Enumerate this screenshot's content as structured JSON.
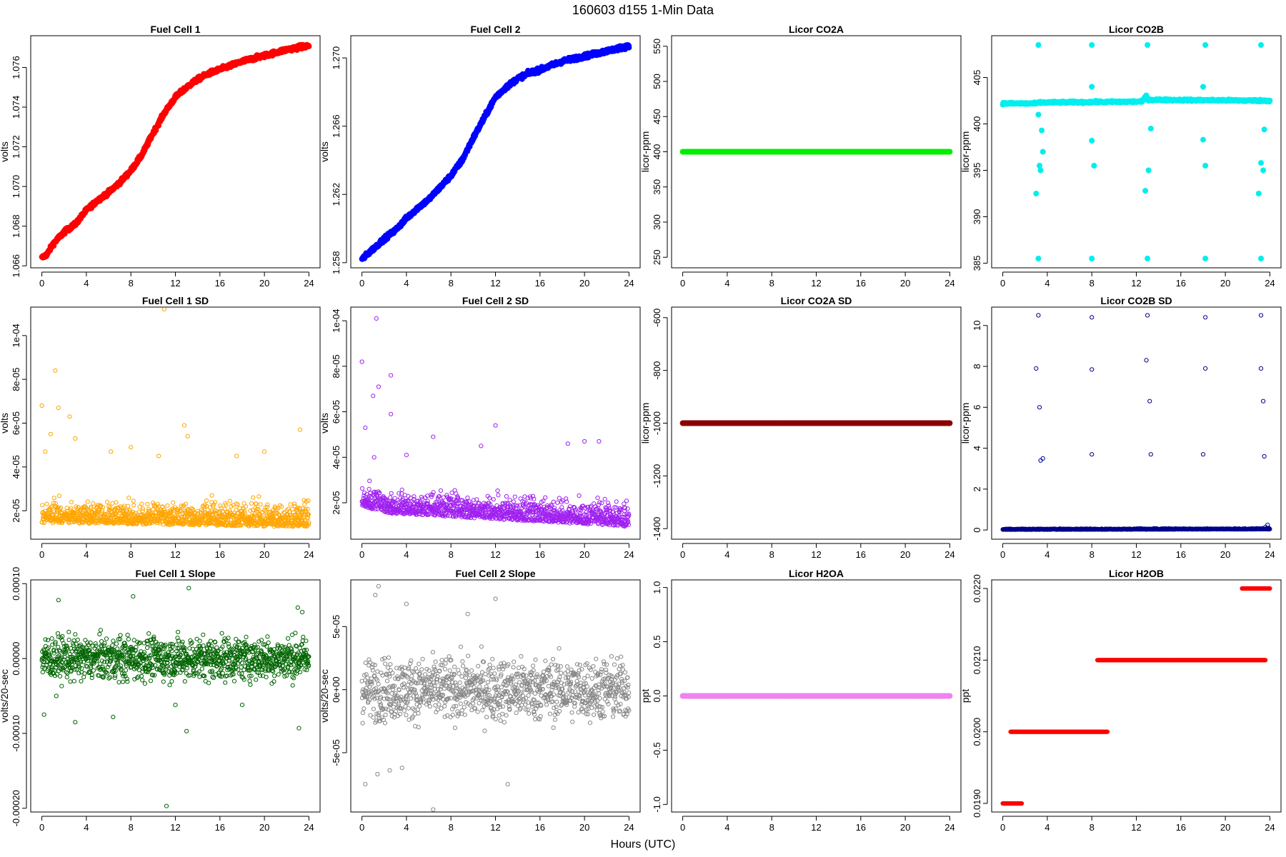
{
  "figure": {
    "title": "160603    d155    1-Min Data",
    "xlabel": "Hours (UTC)"
  },
  "chart_data": [
    {
      "id": "fc1",
      "type": "scatter",
      "title": "Fuel Cell 1",
      "ylabel": "volts",
      "color": "#ff0000",
      "xlim": [
        -1,
        25
      ],
      "xticks": [
        0,
        4,
        8,
        12,
        16,
        20,
        24
      ],
      "ylim": [
        1.0659,
        1.0776
      ],
      "yticks": [
        1.066,
        1.068,
        1.07,
        1.072,
        1.074,
        1.076
      ],
      "yticklabels": [
        "1.066",
        "1.068",
        "1.070",
        "1.072",
        "1.074",
        "1.076"
      ],
      "curve": [
        [
          0,
          1.0664
        ],
        [
          0.5,
          1.0666
        ],
        [
          1,
          1.0671
        ],
        [
          2,
          1.0677
        ],
        [
          3,
          1.0681
        ],
        [
          4,
          1.0688
        ],
        [
          5,
          1.0693
        ],
        [
          6,
          1.0697
        ],
        [
          7,
          1.0702
        ],
        [
          8,
          1.0708
        ],
        [
          9,
          1.0716
        ],
        [
          10,
          1.0727
        ],
        [
          11,
          1.0737
        ],
        [
          12,
          1.0745
        ],
        [
          13,
          1.075
        ],
        [
          14,
          1.0754
        ],
        [
          15,
          1.0757
        ],
        [
          16,
          1.0759
        ],
        [
          18,
          1.0763
        ],
        [
          20,
          1.0766
        ],
        [
          22,
          1.0769
        ],
        [
          24,
          1.0771
        ]
      ],
      "noise": 0.0001,
      "n": 900,
      "size": "big"
    },
    {
      "id": "fc2",
      "type": "scatter",
      "title": "Fuel Cell 2",
      "ylabel": "volts",
      "color": "#0000ff",
      "xlim": [
        -1,
        25
      ],
      "xticks": [
        0,
        4,
        8,
        12,
        16,
        20,
        24
      ],
      "ylim": [
        1.2577,
        1.2713
      ],
      "yticks": [
        1.258,
        1.262,
        1.266,
        1.27
      ],
      "yticklabels": [
        "1.258",
        "1.262",
        "1.266",
        "1.270"
      ],
      "curve": [
        [
          0,
          1.2582
        ],
        [
          1,
          1.2588
        ],
        [
          2,
          1.2594
        ],
        [
          3,
          1.2599
        ],
        [
          4,
          1.2606
        ],
        [
          5,
          1.2612
        ],
        [
          6,
          1.2617
        ],
        [
          7,
          1.2624
        ],
        [
          8,
          1.2631
        ],
        [
          9,
          1.264
        ],
        [
          10,
          1.2653
        ],
        [
          11,
          1.2665
        ],
        [
          12,
          1.2677
        ],
        [
          13,
          1.2683
        ],
        [
          14,
          1.2688
        ],
        [
          15,
          1.2691
        ],
        [
          16,
          1.2693
        ],
        [
          18,
          1.2698
        ],
        [
          20,
          1.2701
        ],
        [
          22,
          1.2704
        ],
        [
          24,
          1.2707
        ]
      ],
      "noise": 0.00012,
      "n": 900,
      "size": "big"
    },
    {
      "id": "co2a",
      "type": "scatter",
      "title": "Licor CO2A",
      "ylabel": "licor-ppm",
      "color": "#00ee00",
      "xlim": [
        -1,
        25
      ],
      "xticks": [
        0,
        4,
        8,
        12,
        16,
        20,
        24
      ],
      "ylim": [
        235,
        565
      ],
      "yticks": [
        250,
        300,
        350,
        400,
        450,
        500,
        550
      ],
      "yticklabels": [
        "250",
        "300",
        "350",
        "400",
        "450",
        "500",
        "550"
      ],
      "curve": [
        [
          0,
          400
        ],
        [
          24,
          400
        ]
      ],
      "noise": 0,
      "n": 400,
      "size": "big"
    },
    {
      "id": "co2b",
      "type": "scatter",
      "title": "Licor CO2B",
      "ylabel": "licor-ppm",
      "color": "#00eeee",
      "xlim": [
        -1,
        25
      ],
      "xticks": [
        0,
        4,
        8,
        12,
        16,
        20,
        24
      ],
      "ylim": [
        384.5,
        409.5
      ],
      "yticks": [
        385,
        390,
        395,
        400,
        405
      ],
      "yticklabels": [
        "385",
        "390",
        "395",
        "400",
        "405"
      ],
      "curve": [
        [
          0,
          402.2
        ],
        [
          3,
          402.2
        ],
        [
          3.3,
          402.3
        ],
        [
          12.5,
          402.4
        ],
        [
          12.9,
          403.0
        ],
        [
          13.1,
          402.6
        ],
        [
          24,
          402.5
        ]
      ],
      "noise": 0.1,
      "n": 500,
      "size": "big",
      "extra": [
        [
          3.2,
          408.5
        ],
        [
          8,
          408.5
        ],
        [
          13,
          408.5
        ],
        [
          18.2,
          408.5
        ],
        [
          23.2,
          408.5
        ],
        [
          3.2,
          385.5
        ],
        [
          8,
          385.5
        ],
        [
          13,
          385.5
        ],
        [
          18.2,
          385.5
        ],
        [
          23.2,
          385.5
        ],
        [
          3.3,
          395.5
        ],
        [
          3.4,
          395.0
        ],
        [
          8,
          404
        ],
        [
          8.2,
          395.5
        ],
        [
          13.1,
          395.0
        ],
        [
          13.3,
          399.5
        ],
        [
          18,
          404
        ],
        [
          18.2,
          395.5
        ],
        [
          23.4,
          395.0
        ],
        [
          23.5,
          399.4
        ],
        [
          3.0,
          392.5
        ],
        [
          12.8,
          392.8
        ],
        [
          23.0,
          392.5
        ],
        [
          3.5,
          399.3
        ],
        [
          3.6,
          397
        ],
        [
          8,
          398.2
        ],
        [
          18,
          398.3
        ],
        [
          23.2,
          395.8
        ],
        [
          3.2,
          401
        ]
      ]
    },
    {
      "id": "fc1sd",
      "type": "scatter",
      "title": "Fuel Cell 1 SD",
      "ylabel": "volts",
      "color": "#ffa500",
      "xlim": [
        -1,
        25
      ],
      "xticks": [
        0,
        4,
        8,
        12,
        16,
        20,
        24
      ],
      "ylim": [
        7e-06,
        0.000113
      ],
      "yticks": [
        2e-05,
        4e-05,
        6e-05,
        8e-05,
        0.0001
      ],
      "yticklabels": [
        "2e-05",
        "4e-05",
        "6e-05",
        "8e-05",
        "1e-04"
      ],
      "curve": [
        [
          0,
          1.8e-05
        ],
        [
          24,
          1.6e-05
        ]
      ],
      "noise": 7e-06,
      "n": 1200,
      "size": "small",
      "hollow": true,
      "extra": [
        [
          0,
          6.8e-05
        ],
        [
          0.3,
          4.7e-05
        ],
        [
          0.8,
          5.5e-05
        ],
        [
          1.2,
          8.4e-05
        ],
        [
          1.5,
          6.7e-05
        ],
        [
          2.5,
          6.3e-05
        ],
        [
          3,
          5.3e-05
        ],
        [
          6.2,
          4.7e-05
        ],
        [
          8,
          4.9e-05
        ],
        [
          11,
          0.000112
        ],
        [
          12.8,
          5.9e-05
        ],
        [
          13.1,
          5.4e-05
        ],
        [
          17.5,
          4.5e-05
        ],
        [
          20,
          4.7e-05
        ],
        [
          23.2,
          5.7e-05
        ],
        [
          10.5,
          4.5e-05
        ]
      ]
    },
    {
      "id": "fc2sd",
      "type": "scatter",
      "title": "Fuel Cell 2 SD",
      "ylabel": "volts",
      "color": "#a020f0",
      "xlim": [
        -1,
        25
      ],
      "xticks": [
        0,
        4,
        8,
        12,
        16,
        20,
        24
      ],
      "ylim": [
        4e-06,
        0.000106
      ],
      "yticks": [
        2e-05,
        4e-05,
        6e-05,
        8e-05,
        0.0001
      ],
      "yticklabels": [
        "2e-05",
        "4e-05",
        "6e-05",
        "8e-05",
        "1e-04"
      ],
      "curve": [
        [
          0,
          2.2e-05
        ],
        [
          2,
          1.9e-05
        ],
        [
          24,
          1.3e-05
        ]
      ],
      "noise": 7e-06,
      "n": 1200,
      "size": "small",
      "hollow": true,
      "extra": [
        [
          0,
          8.2e-05
        ],
        [
          0.3,
          5.3e-05
        ],
        [
          1,
          6.7e-05
        ],
        [
          1.3,
          0.000101
        ],
        [
          1.5,
          7.1e-05
        ],
        [
          2.6,
          7.6e-05
        ],
        [
          2.6,
          5.9e-05
        ],
        [
          6.4,
          4.9e-05
        ],
        [
          12,
          5.4e-05
        ],
        [
          10.7,
          4.5e-05
        ],
        [
          20,
          4.7e-05
        ],
        [
          21.3,
          4.7e-05
        ],
        [
          18.5,
          4.6e-05
        ],
        [
          1.1,
          4e-05
        ],
        [
          4,
          4.1e-05
        ]
      ]
    },
    {
      "id": "co2asd",
      "type": "scatter",
      "title": "Licor CO2A SD",
      "ylabel": "licor-ppm",
      "color": "#8b0000",
      "xlim": [
        -1,
        25
      ],
      "xticks": [
        0,
        4,
        8,
        12,
        16,
        20,
        24
      ],
      "ylim": [
        -1440,
        -560
      ],
      "yticks": [
        -1400,
        -1200,
        -1000,
        -800,
        -600
      ],
      "yticklabels": [
        "-1400",
        "-1200",
        "-1000",
        "-800",
        "-600"
      ],
      "curve": [
        [
          0,
          -1000
        ],
        [
          24,
          -1000
        ]
      ],
      "noise": 0,
      "n": 400,
      "size": "big"
    },
    {
      "id": "co2bsd",
      "type": "scatter",
      "title": "Licor CO2B SD",
      "ylabel": "licor-ppm",
      "color": "#00008b",
      "xlim": [
        -1,
        25
      ],
      "xticks": [
        0,
        4,
        8,
        12,
        16,
        20,
        24
      ],
      "ylim": [
        -0.45,
        10.9
      ],
      "yticks": [
        0,
        2,
        4,
        6,
        8,
        10
      ],
      "yticklabels": [
        "0",
        "2",
        "4",
        "6",
        "8",
        "10"
      ],
      "curve": [
        [
          0,
          0.03
        ],
        [
          24,
          0.05
        ]
      ],
      "noise": 0.03,
      "n": 900,
      "size": "small",
      "hollow": true,
      "extra": [
        [
          3.2,
          10.5
        ],
        [
          8,
          10.4
        ],
        [
          13,
          10.5
        ],
        [
          18.2,
          10.4
        ],
        [
          23.2,
          10.5
        ],
        [
          3,
          7.9
        ],
        [
          8,
          7.85
        ],
        [
          12.9,
          8.3
        ],
        [
          18.2,
          7.9
        ],
        [
          23.2,
          7.9
        ],
        [
          3.3,
          6.0
        ],
        [
          13.2,
          6.3
        ],
        [
          23.4,
          6.3
        ],
        [
          3.4,
          3.4
        ],
        [
          3.6,
          3.5
        ],
        [
          8,
          3.7
        ],
        [
          13.3,
          3.7
        ],
        [
          18,
          3.7
        ],
        [
          23.5,
          3.6
        ],
        [
          23.8,
          0.25
        ],
        [
          23.6,
          0.15
        ],
        [
          23.9,
          0.1
        ]
      ]
    },
    {
      "id": "fc1slope",
      "type": "scatter",
      "title": "Fuel Cell 1 Slope",
      "ylabel": "volts/20-sec",
      "color": "#006400",
      "xlim": [
        -1,
        25
      ],
      "xticks": [
        0,
        4,
        8,
        12,
        16,
        20,
        24
      ],
      "ylim": [
        -0.000205,
        0.000105
      ],
      "yticks": [
        -0.0002,
        -0.0001,
        0,
        0.0001
      ],
      "yticklabels": [
        "-0.00020",
        "-0.00010",
        "0.00000",
        "0.00010"
      ],
      "curve": [
        [
          0,
          0
        ],
        [
          24,
          0
        ]
      ],
      "noise": 2.8e-05,
      "n": 1200,
      "size": "small",
      "hollow": true,
      "extra": [
        [
          11.2,
          -0.000197
        ],
        [
          13,
          -9.7e-05
        ],
        [
          3,
          -8.5e-05
        ],
        [
          23.1,
          -9.3e-05
        ],
        [
          0.2,
          -7.5e-05
        ],
        [
          6.4,
          -7.8e-05
        ],
        [
          8.2,
          8.3e-05
        ],
        [
          13.2,
          9.4e-05
        ],
        [
          1.5,
          7.8e-05
        ],
        [
          23,
          6.8e-05
        ],
        [
          23.4,
          6.2e-05
        ],
        [
          12,
          -6.2e-05
        ],
        [
          18,
          -6.2e-05
        ],
        [
          1.3,
          -5e-05
        ]
      ]
    },
    {
      "id": "fc2slope",
      "type": "scatter",
      "title": "Fuel Cell 2 Slope",
      "ylabel": "volts/20-sec",
      "color": "#888888",
      "xlim": [
        -1,
        25
      ],
      "xticks": [
        0,
        4,
        8,
        12,
        16,
        20,
        24
      ],
      "ylim": [
        -9.7e-05,
        8.7e-05
      ],
      "yticks": [
        -5e-05,
        0,
        5e-05
      ],
      "yticklabels": [
        "-5e-05",
        "0e+00",
        "5e-05"
      ],
      "curve": [
        [
          0,
          0
        ],
        [
          24,
          0
        ]
      ],
      "noise": 2.4e-05,
      "n": 1100,
      "size": "small",
      "hollow": true,
      "extra": [
        [
          1.5,
          8.2e-05
        ],
        [
          1.2,
          7.5e-05
        ],
        [
          0.3,
          -7.5e-05
        ],
        [
          6.4,
          -9.5e-05
        ],
        [
          12,
          7.2e-05
        ],
        [
          13.1,
          -7.5e-05
        ],
        [
          4,
          6.8e-05
        ],
        [
          3.6,
          -6.2e-05
        ],
        [
          1.4,
          -6.7e-05
        ],
        [
          2.5,
          -6.4e-05
        ],
        [
          9.5,
          6e-05
        ]
      ]
    },
    {
      "id": "h2oa",
      "type": "scatter",
      "title": "Licor H2OA",
      "ylabel": "ppt",
      "color": "#ee82ee",
      "xlim": [
        -1,
        25
      ],
      "xticks": [
        0,
        4,
        8,
        12,
        16,
        20,
        24
      ],
      "ylim": [
        -1.07,
        1.07
      ],
      "yticks": [
        -1,
        -0.5,
        0,
        0.5,
        1
      ],
      "yticklabels": [
        "-1.0",
        "-0.5",
        "0.0",
        "0.5",
        "1.0"
      ],
      "curve": [
        [
          0,
          0
        ],
        [
          24,
          0
        ]
      ],
      "noise": 0,
      "n": 400,
      "size": "big"
    },
    {
      "id": "h2ob",
      "type": "scatter",
      "title": "Licor H2OB",
      "ylabel": "ppt",
      "color": "#ff0000",
      "xlim": [
        -1,
        25
      ],
      "xticks": [
        0,
        4,
        8,
        12,
        16,
        20,
        24
      ],
      "ylim": [
        0.01888,
        0.02212
      ],
      "yticks": [
        0.019,
        0.02,
        0.021,
        0.022
      ],
      "yticklabels": [
        "0.0190",
        "0.0200",
        "0.0210",
        "0.0220"
      ],
      "segments": [
        [
          0,
          1.7,
          0.019
        ],
        [
          0.7,
          9.4,
          0.02
        ],
        [
          8.5,
          23.6,
          0.021
        ],
        [
          21.5,
          24,
          0.022
        ]
      ],
      "n": 600,
      "size": "small",
      "hollow": true
    }
  ]
}
